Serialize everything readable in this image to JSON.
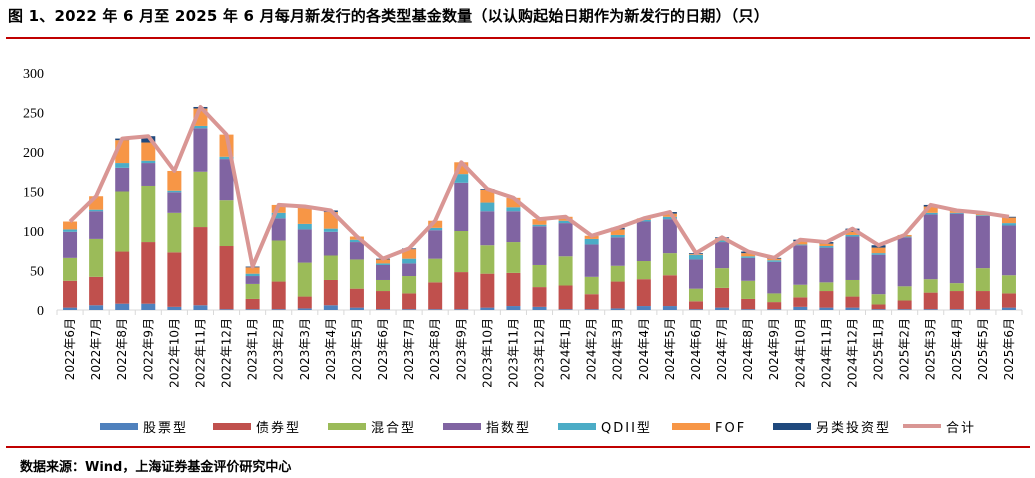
{
  "title": "图 1、2022 年 6 月至 2025 年 6 月每月新发行的各类型基金数量（以认购起始日期作为新发行的日期）（只）",
  "source": "数据来源：Wind，上海证券基金评价研究中心",
  "chart_data": {
    "type": "bar",
    "stacked": true,
    "ylim": [
      0,
      300
    ],
    "yticks": [
      0,
      50,
      100,
      150,
      200,
      250,
      300
    ],
    "grid": false,
    "legend_position": "bottom",
    "categories": [
      "2022年6月",
      "2022年7月",
      "2022年8月",
      "2022年9月",
      "2022年10月",
      "2022年11月",
      "2022年12月",
      "2023年1月",
      "2023年2月",
      "2023年3月",
      "2023年4月",
      "2023年5月",
      "2023年6月",
      "2023年7月",
      "2023年8月",
      "2023年9月",
      "2023年10月",
      "2023年11月",
      "2023年12月",
      "2024年1月",
      "2024年2月",
      "2024年3月",
      "2024年4月",
      "2024年5月",
      "2024年6月",
      "2024年7月",
      "2024年8月",
      "2024年9月",
      "2024年10月",
      "2024年11月",
      "2024年12月",
      "2025年1月",
      "2025年2月",
      "2025年3月",
      "2025年4月",
      "2025年5月",
      "2025年6月"
    ],
    "series": [
      {
        "name": "股票型",
        "color": "#4f81bd",
        "values": [
          3,
          6,
          8,
          8,
          4,
          6,
          1,
          1,
          1,
          2,
          6,
          3,
          1,
          1,
          1,
          1,
          3,
          5,
          4,
          1,
          1,
          2,
          5,
          5,
          1,
          3,
          1,
          1,
          4,
          3,
          3,
          1,
          1,
          1,
          1,
          1,
          3
        ]
      },
      {
        "name": "债券型",
        "color": "#c0504d",
        "values": [
          34,
          36,
          66,
          78,
          69,
          99,
          80,
          13,
          35,
          15,
          32,
          24,
          23,
          20,
          34,
          47,
          43,
          42,
          25,
          30,
          19,
          34,
          34,
          39,
          10,
          25,
          13,
          9,
          12,
          21,
          14,
          6,
          11,
          21,
          23,
          23,
          18
        ]
      },
      {
        "name": "混合型",
        "color": "#9bbb59",
        "values": [
          29,
          48,
          76,
          71,
          50,
          70,
          58,
          19,
          52,
          43,
          31,
          37,
          14,
          22,
          30,
          52,
          36,
          39,
          28,
          37,
          22,
          20,
          23,
          28,
          16,
          25,
          23,
          11,
          16,
          11,
          21,
          13,
          18,
          17,
          10,
          29,
          23
        ]
      },
      {
        "name": "指数型",
        "color": "#8064a2",
        "values": [
          33,
          35,
          30,
          29,
          26,
          55,
          52,
          10,
          28,
          42,
          30,
          22,
          19,
          16,
          36,
          61,
          43,
          39,
          49,
          42,
          41,
          36,
          50,
          43,
          37,
          33,
          29,
          40,
          50,
          44,
          55,
          50,
          62,
          82,
          88,
          66,
          63
        ]
      },
      {
        "name": "QDII型",
        "color": "#4bacc6",
        "values": [
          3,
          2,
          6,
          3,
          2,
          3,
          3,
          3,
          7,
          7,
          4,
          3,
          2,
          6,
          3,
          11,
          11,
          5,
          2,
          3,
          7,
          3,
          2,
          3,
          6,
          2,
          2,
          2,
          1,
          2,
          2,
          2,
          1,
          2,
          1,
          1,
          3
        ]
      },
      {
        "name": "FOF",
        "color": "#f79646",
        "values": [
          10,
          17,
          29,
          23,
          25,
          22,
          28,
          8,
          10,
          22,
          21,
          4,
          5,
          12,
          9,
          15,
          16,
          12,
          7,
          5,
          4,
          7,
          2,
          4,
          1,
          3,
          4,
          2,
          4,
          3,
          4,
          7,
          2,
          8,
          3,
          3,
          7
        ]
      },
      {
        "name": "另类投资型",
        "color": "#1f497d",
        "values": [
          0,
          0,
          2,
          8,
          0,
          2,
          0,
          1,
          0,
          0,
          2,
          0,
          1,
          1,
          0,
          0,
          1,
          0,
          0,
          0,
          0,
          2,
          0,
          2,
          1,
          1,
          2,
          1,
          2,
          2,
          4,
          3,
          0,
          2,
          0,
          0,
          1
        ]
      }
    ],
    "line": {
      "name": "合计",
      "color": "#d99694",
      "values": [
        112,
        144,
        217,
        220,
        176,
        257,
        222,
        55,
        133,
        131,
        126,
        93,
        65,
        78,
        113,
        187,
        153,
        142,
        115,
        118,
        94,
        104,
        116,
        124,
        72,
        92,
        74,
        66,
        89,
        86,
        103,
        82,
        95,
        133,
        126,
        123,
        118
      ]
    }
  }
}
